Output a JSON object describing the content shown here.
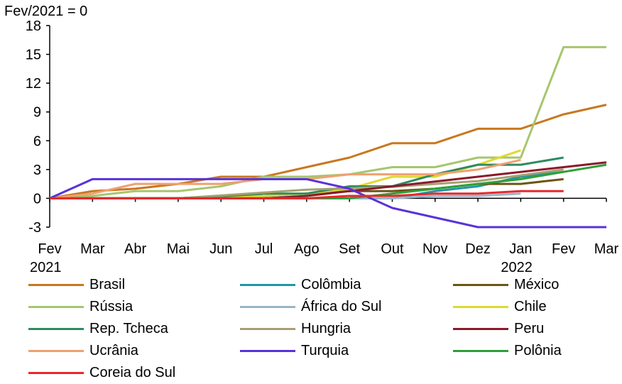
{
  "chart_data": {
    "type": "line",
    "title": "Fev/2021 = 0",
    "x_tick_labels": [
      [
        "Fev",
        "2021"
      ],
      [
        "Mar"
      ],
      [
        "Abr"
      ],
      [
        "Mai"
      ],
      [
        "Jun"
      ],
      [
        "Jul"
      ],
      [
        "Ago"
      ],
      [
        "Set"
      ],
      [
        "Out"
      ],
      [
        "Nov"
      ],
      [
        "Dez"
      ],
      [
        "Jan",
        "2022"
      ],
      [
        "Fev"
      ],
      [
        "Mar"
      ]
    ],
    "x": [
      "2021-02",
      "2021-03",
      "2021-04",
      "2021-05",
      "2021-06",
      "2021-07",
      "2021-08",
      "2021-09",
      "2021-10",
      "2021-11",
      "2021-12",
      "2022-01",
      "2022-02",
      "2022-03"
    ],
    "ylim": [
      -3,
      18
    ],
    "yticks": [
      -3,
      0,
      3,
      6,
      9,
      12,
      15,
      18
    ],
    "legend_position": "bottom",
    "series": [
      {
        "name": "Brasil",
        "color": "#c8781e",
        "values": [
          0,
          0.75,
          1.0,
          1.5,
          2.25,
          2.25,
          3.25,
          4.25,
          5.75,
          5.75,
          7.25,
          7.25,
          8.75,
          9.75
        ]
      },
      {
        "name": "Colômbia",
        "color": "#2196a6",
        "values": [
          0,
          0,
          0,
          0,
          0,
          0,
          0,
          0,
          0,
          0.75,
          1.25,
          2.25,
          2.75,
          null
        ]
      },
      {
        "name": "México",
        "color": "#6b5514",
        "values": [
          0,
          0,
          0,
          0,
          0.25,
          0.25,
          0.5,
          0.75,
          0.75,
          1.0,
          1.5,
          1.5,
          2.0,
          null
        ]
      },
      {
        "name": "Rússia",
        "color": "#a6c66e",
        "values": [
          0,
          0.25,
          0.75,
          0.75,
          1.25,
          2.25,
          2.25,
          2.5,
          3.25,
          3.25,
          4.25,
          4.25,
          15.75,
          15.75
        ]
      },
      {
        "name": "África do Sul",
        "color": "#9ab4c8",
        "values": [
          0,
          0,
          0,
          0,
          0,
          0,
          0,
          0,
          0,
          0.25,
          0.25,
          0.5,
          null,
          null
        ]
      },
      {
        "name": "Chile",
        "color": "#e0d930",
        "values": [
          0,
          0,
          0,
          0,
          0,
          0.25,
          0.5,
          1.0,
          2.25,
          2.25,
          3.5,
          5.0,
          null,
          null
        ]
      },
      {
        "name": "Rep. Tcheca",
        "color": "#2e8b62",
        "values": [
          0,
          0,
          0,
          0,
          0.25,
          0.5,
          0.5,
          1.25,
          1.25,
          2.5,
          3.5,
          3.5,
          4.25,
          null
        ]
      },
      {
        "name": "Hungria",
        "color": "#a8a072",
        "values": [
          0,
          0,
          0,
          0,
          0.3,
          0.6,
          0.9,
          1.05,
          1.2,
          1.5,
          1.8,
          2.4,
          3.0,
          null
        ]
      },
      {
        "name": "Peru",
        "color": "#8b1a2b",
        "values": [
          0,
          0,
          0,
          0,
          0,
          0,
          0.25,
          0.75,
          1.25,
          1.75,
          2.25,
          2.75,
          3.25,
          3.75
        ]
      },
      {
        "name": "Ucrânia",
        "color": "#f0a070",
        "values": [
          0,
          0.5,
          1.5,
          1.5,
          1.5,
          2.0,
          2.0,
          2.5,
          2.5,
          2.5,
          3.0,
          4.0,
          null,
          null
        ]
      },
      {
        "name": "Turquia",
        "color": "#5a32d8",
        "values": [
          0,
          2.0,
          2.0,
          2.0,
          2.0,
          2.0,
          2.0,
          1.0,
          -1.0,
          -2.0,
          -3.0,
          -3.0,
          -3.0,
          -3.0
        ]
      },
      {
        "name": "Polônia",
        "color": "#2ea038",
        "values": [
          0,
          0,
          0,
          0,
          0,
          0,
          0,
          0,
          0.5,
          1.0,
          1.5,
          2.0,
          2.75,
          3.5
        ]
      },
      {
        "name": "Coreia do Sul",
        "color": "#e8282e",
        "values": [
          0,
          0,
          0,
          0,
          0,
          0,
          0,
          0.25,
          0.25,
          0.5,
          0.5,
          0.75,
          0.75,
          null
        ]
      }
    ]
  }
}
